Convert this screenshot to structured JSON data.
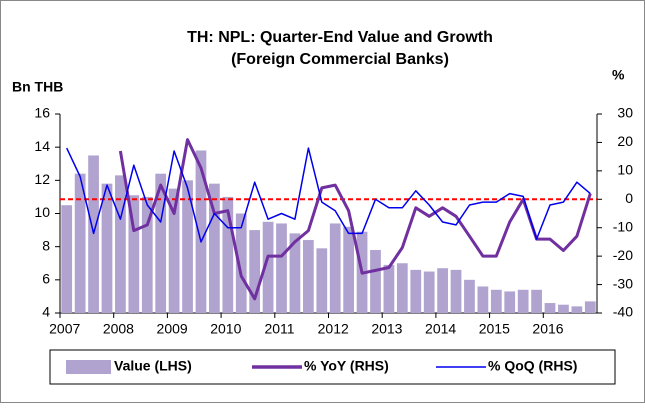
{
  "chart_data": {
    "type": "bar_line",
    "title": "TH: NPL: Quarter-End Value and Growth",
    "subtitle": "(Foreign Commercial Banks)",
    "y_label": "Bn THB",
    "y2_label": "%",
    "categories": [
      "2007",
      null,
      null,
      null,
      "2008",
      null,
      null,
      null,
      "2009",
      null,
      null,
      null,
      "2010",
      null,
      null,
      null,
      "2011",
      null,
      null,
      null,
      "2012",
      null,
      null,
      null,
      "2013",
      null,
      null,
      null,
      "2014",
      null,
      null,
      null,
      "2015",
      null,
      null,
      null,
      "2016",
      null,
      null,
      null
    ],
    "series": [
      {
        "name": "Value (LHS)",
        "type": "bar",
        "color": "#b1a3cf",
        "values": [
          10.5,
          12.4,
          13.5,
          11.8,
          12.3,
          11.1,
          11.0,
          12.4,
          11.5,
          12.0,
          13.8,
          11.8,
          11.0,
          10.0,
          9.0,
          9.5,
          9.4,
          8.8,
          8.4,
          7.9,
          9.4,
          9.2,
          8.9,
          7.8,
          6.9,
          7.0,
          6.6,
          6.5,
          6.7,
          6.6,
          6.0,
          5.6,
          5.4,
          5.3,
          5.4,
          5.4,
          4.6,
          4.5,
          4.4,
          4.7
        ]
      },
      {
        "name": "% YoY (RHS)",
        "type": "line",
        "axis": "y2",
        "color": "#7030a0",
        "values": [
          null,
          null,
          null,
          null,
          17,
          -11,
          -9,
          5,
          -5,
          21,
          11,
          -5,
          -4,
          -27,
          -35,
          -20,
          -20,
          -15,
          -11,
          4,
          5,
          -4,
          -26,
          -25,
          -24,
          -17,
          -3,
          -6,
          -3,
          -6,
          -13,
          -20,
          -20,
          -8,
          0,
          -14,
          -14,
          -18,
          -13,
          2
        ]
      },
      {
        "name": "% QoQ (RHS)",
        "type": "line",
        "axis": "y2",
        "color": "#0000ee",
        "values": [
          18,
          8,
          -12,
          5,
          -7,
          12,
          -2,
          -8,
          17,
          4,
          -15,
          -5,
          -10,
          -10,
          6,
          -7,
          -5,
          -7,
          18,
          -1,
          -4,
          -12,
          -12,
          0,
          -3,
          -3,
          3,
          -2,
          -8,
          -9,
          -2,
          -1,
          -1,
          2,
          1,
          -14,
          -2,
          -1,
          6,
          2
        ]
      }
    ],
    "reference_line": {
      "axis": "y2",
      "value": 0,
      "color": "#ff0000"
    },
    "ylim": [
      4,
      16
    ],
    "yticks": [
      4,
      6,
      8,
      10,
      12,
      14,
      16
    ],
    "y2lim": [
      -40,
      30
    ],
    "y2ticks": [
      -40,
      -30,
      -20,
      -10,
      0,
      10,
      20,
      30
    ],
    "legend": "bottom"
  }
}
